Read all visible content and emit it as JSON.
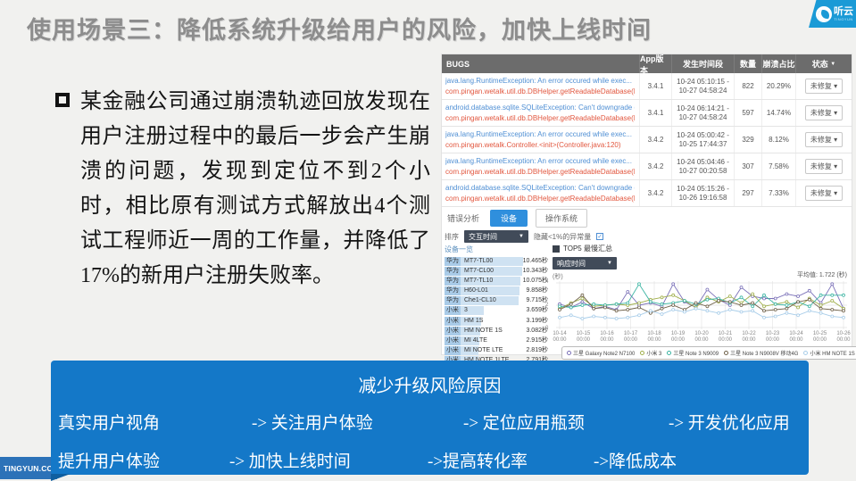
{
  "slide": {
    "title": "使用场景三：降低系统升级给用户的风险，加快上线时间",
    "bullet_text": "某金融公司通过崩溃轨迹回放发现在用户注册过程中的最后一步会产生崩溃的问题，发现到定位不到2个小时，相比原有测试方式解放出4个测试工程师近一周的工作量，并降低了17%的新用户注册失败率。",
    "watermark": "TINGYUN.CO....",
    "colors": {
      "title": "#8d8d8d",
      "panel_blue": "#1478c8",
      "ribbon_blue": "#2c72b8",
      "logo_blue": "#1a9ad6"
    }
  },
  "logo": {
    "name": "听云",
    "subname": "TINGYUN"
  },
  "dashboard": {
    "table": {
      "headers": [
        "BUGS",
        "App版本",
        "发生时间段",
        "数量",
        "崩溃占比",
        "状态"
      ],
      "rows": [
        {
          "error": "java.lang.RuntimeException: An error occured while exec...",
          "location": "com.pingan.wetalk.util.db.DBHelper.getReadableDatabase(DBHelper.java:1518)",
          "version": "3.4.1",
          "time": "10-24 05:10:15 - 10-27 04:58:24",
          "count": "822",
          "percent": "20.29%",
          "status": "未修复"
        },
        {
          "error": "android.database.sqlite.SQLiteException: Can't downgrade database...",
          "location": "com.pingan.wetalk.util.db.DBHelper.getReadableDatabase(DBHelper.java:1518)",
          "version": "3.4.1",
          "time": "10-24 06:14:21 - 10-27 04:58:24",
          "count": "597",
          "percent": "14.74%",
          "status": "未修复"
        },
        {
          "error": "java.lang.RuntimeException: An error occured while exec...",
          "location": "com.pingan.wetalk.Controller.<init>(Controller.java:120)",
          "version": "3.4.2",
          "time": "10-24 05:00:42 - 10-25 17:44:37",
          "count": "329",
          "percent": "8.12%",
          "status": "未修复"
        },
        {
          "error": "java.lang.RuntimeException: An error occured while exec...",
          "location": "com.pingan.wetalk.util.db.DBHelper.getReadableDatabase(DBHelper.java:1518)",
          "version": "3.4.2",
          "time": "10-24 05:04:46 - 10-27 00:20:58",
          "count": "307",
          "percent": "7.58%",
          "status": "未修复"
        },
        {
          "error": "android.database.sqlite.SQLiteException: Can't downgrade database...",
          "location": "com.pingan.wetalk.util.db.DBHelper.getReadableDatabase(DBHelper.java:1518)",
          "version": "3.4.2",
          "time": "10-24 05:15:26 - 10-26 19:16:58",
          "count": "297",
          "percent": "7.33%",
          "status": "未修复"
        }
      ]
    },
    "tabs": {
      "items": [
        "错误分析",
        "设备",
        "操作系统"
      ],
      "active": "设备"
    },
    "filter": {
      "sort_label": "排序",
      "sort_value": "交互时间",
      "hide_label": "隐藏<1%的异常量"
    },
    "device_list": {
      "header": "设备一览",
      "items": [
        {
          "brand": "华为",
          "model": "MT7-TL00",
          "value_text": "10.465秒",
          "value": 10.465
        },
        {
          "brand": "华为",
          "model": "MT7-CL00",
          "value_text": "10.343秒",
          "value": 10.343
        },
        {
          "brand": "华为",
          "model": "MT7-TL10",
          "value_text": "10.075秒",
          "value": 10.075
        },
        {
          "brand": "华为",
          "model": "H60-L01",
          "value_text": "9.858秒",
          "value": 9.858
        },
        {
          "brand": "华为",
          "model": "Che1-CL10",
          "value_text": "9.715秒",
          "value": 9.715
        },
        {
          "brand": "小米",
          "model": "3",
          "value_text": "3.659秒",
          "value": 3.659
        },
        {
          "brand": "小米",
          "model": "HM 1S",
          "value_text": "3.199秒",
          "value": 3.199
        },
        {
          "brand": "小米",
          "model": "HM NOTE 1S",
          "value_text": "3.082秒",
          "value": 3.082
        },
        {
          "brand": "小米",
          "model": "MI 4LTE",
          "value_text": "2.915秒",
          "value": 2.915
        },
        {
          "brand": "小米",
          "model": "MI NOTE LTE",
          "value_text": "2.819秒",
          "value": 2.819
        },
        {
          "brand": "小米",
          "model": "HM NOTE 1LTE",
          "value_text": "2.791秒",
          "value": 2.791
        }
      ]
    },
    "chart_header": {
      "title": "TOP5 最慢汇总",
      "dropdown": "响应时间",
      "unit": "(秒)",
      "average": "平均值: 1.722 (秒)"
    }
  },
  "chart_data": {
    "type": "line",
    "title": "TOP5 最慢汇总",
    "ylabel": "(秒)",
    "ylim": [
      0,
      4
    ],
    "yticks": [
      0,
      2,
      4
    ],
    "grid": true,
    "legend_position": "bottom",
    "average_value": 1.722,
    "x_tick_labels": [
      "10-14",
      "10-15",
      "10-16",
      "10-17",
      "10-18",
      "10-19",
      "10-20",
      "10-21",
      "10-22",
      "10-23",
      "10-24",
      "10-25",
      "10-26"
    ],
    "x_tick_sublabel": "00:00",
    "series": [
      {
        "name": "三星 Galaxy Note2 N7100",
        "color": "#7a70b8",
        "values": [
          2.1,
          1.8,
          2.3,
          1.7,
          1.9,
          1.6,
          3.2,
          2.0,
          2.2,
          1.9,
          3.9,
          2.3,
          1.8,
          3.4,
          2.5,
          2.0,
          3.6,
          2.8,
          2.6,
          2.6,
          3.0,
          2.8,
          3.3,
          2.2,
          3.9,
          1.7
        ]
      },
      {
        "name": "小米 3",
        "color": "#9fae4a",
        "values": [
          1.7,
          2.2,
          2.6,
          1.9,
          2.0,
          2.1,
          2.0,
          2.2,
          2.5,
          2.7,
          2.9,
          2.4,
          1.8,
          2.7,
          2.3,
          2.8,
          2.2,
          3.0,
          1.9,
          2.1,
          2.3,
          1.8,
          2.6,
          2.0,
          2.4,
          1.7
        ]
      },
      {
        "name": "三星 Note 3 N9009",
        "color": "#3ab4a2",
        "values": [
          1.9,
          1.8,
          2.0,
          2.1,
          2.0,
          2.1,
          2.2,
          3.9,
          2.3,
          2.1,
          2.2,
          2.4,
          2.1,
          2.5,
          2.6,
          2.2,
          2.7,
          1.9,
          2.9,
          2.1,
          2.0,
          2.3,
          1.9,
          2.9,
          2.9,
          2.9
        ]
      },
      {
        "name": "三星 Note 3 N9008V 移动4G",
        "color": "#6f6149",
        "values": [
          1.6,
          2.1,
          2.9,
          1.7,
          1.8,
          1.5,
          1.6,
          1.8,
          1.3,
          1.7,
          2.0,
          1.6,
          2.2,
          1.9,
          2.4,
          2.3,
          2.0,
          2.2,
          1.5,
          1.6,
          1.7,
          2.3,
          2.5,
          1.7,
          1.6,
          1.5
        ]
      },
      {
        "name": "小米 HM NOTE 1S",
        "color": "#a8cde9",
        "values": [
          0.9,
          1.1,
          0.8,
          1.0,
          0.9,
          0.8,
          0.9,
          1.1,
          1.5,
          1.2,
          1.6,
          1.4,
          1.7,
          1.5,
          1.3,
          1.6,
          1.4,
          1.5,
          0.9,
          1.0,
          1.3,
          1.1,
          1.5,
          1.3,
          1.0,
          0.9
        ]
      }
    ]
  },
  "summary_panel": {
    "title": "减少升级风险原因",
    "rows": [
      [
        "真实用户视角",
        "-> 关注用户体验",
        "-> 定位应用瓶颈",
        "-> 开发优化应用"
      ],
      [
        "提升用户体验",
        "-> 加快上线时间",
        "->提高转化率",
        "->降低成本"
      ]
    ]
  }
}
